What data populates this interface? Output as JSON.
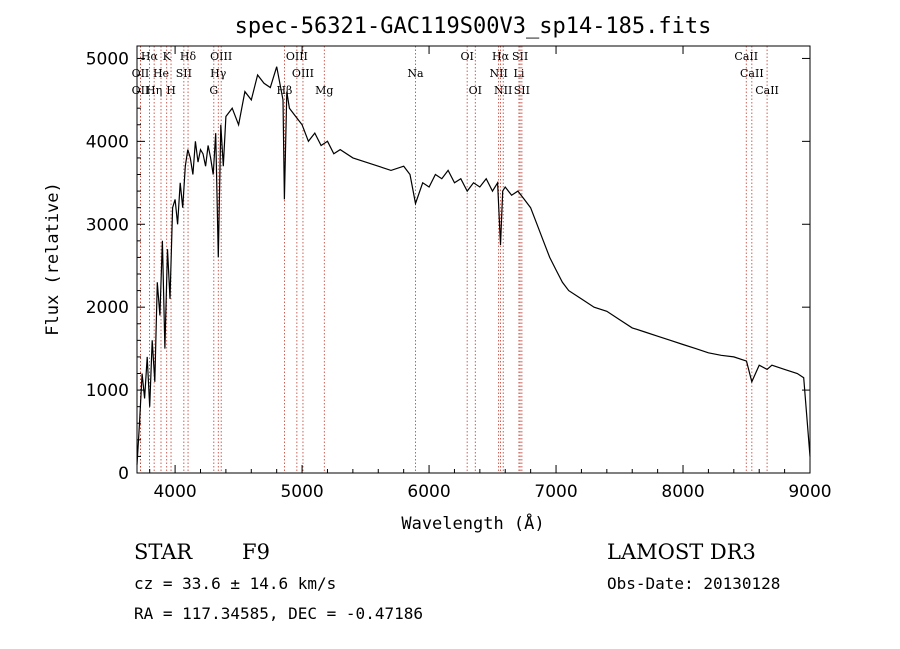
{
  "chart_data": {
    "type": "line",
    "title": "spec-56321-GAC119S00V3_sp14-185.fits",
    "xlabel": "Wavelength (Å)",
    "ylabel": "Flux (relative)",
    "xlim": [
      3700,
      9000
    ],
    "ylim": [
      0,
      5150
    ],
    "xticks": [
      4000,
      5000,
      6000,
      7000,
      8000,
      9000
    ],
    "yticks": [
      0,
      1000,
      2000,
      3000,
      4000,
      5000
    ],
    "series": [
      {
        "name": "flux",
        "x": [
          3700,
          3720,
          3740,
          3760,
          3780,
          3800,
          3820,
          3840,
          3860,
          3880,
          3900,
          3920,
          3940,
          3960,
          3980,
          4000,
          4020,
          4040,
          4060,
          4080,
          4100,
          4120,
          4140,
          4160,
          4180,
          4200,
          4220,
          4240,
          4260,
          4280,
          4300,
          4320,
          4340,
          4360,
          4380,
          4400,
          4450,
          4500,
          4550,
          4600,
          4650,
          4700,
          4750,
          4800,
          4850,
          4861,
          4880,
          4900,
          4950,
          5000,
          5050,
          5100,
          5150,
          5200,
          5250,
          5300,
          5400,
          5500,
          5600,
          5700,
          5800,
          5850,
          5893,
          5950,
          6000,
          6050,
          6100,
          6150,
          6200,
          6250,
          6300,
          6350,
          6400,
          6450,
          6500,
          6540,
          6563,
          6580,
          6600,
          6650,
          6700,
          6750,
          6800,
          6850,
          6900,
          6950,
          7000,
          7050,
          7100,
          7200,
          7300,
          7400,
          7500,
          7600,
          7700,
          7800,
          7900,
          8000,
          8100,
          8200,
          8300,
          8400,
          8500,
          8542,
          8600,
          8662,
          8700,
          8800,
          8900,
          8950,
          9000
        ],
        "y": [
          100,
          600,
          1200,
          900,
          1400,
          800,
          1600,
          1100,
          2300,
          1900,
          2800,
          1500,
          2700,
          2100,
          3200,
          3300,
          3000,
          3500,
          3200,
          3700,
          3900,
          3800,
          3600,
          4000,
          3750,
          3900,
          3850,
          3700,
          3950,
          3800,
          3600,
          4100,
          2600,
          4200,
          3700,
          4300,
          4400,
          4200,
          4600,
          4500,
          4800,
          4700,
          4650,
          4900,
          4500,
          3300,
          4600,
          4400,
          4300,
          4200,
          4000,
          4100,
          3950,
          4000,
          3850,
          3900,
          3800,
          3750,
          3700,
          3650,
          3700,
          3600,
          3250,
          3500,
          3450,
          3600,
          3550,
          3650,
          3500,
          3550,
          3400,
          3500,
          3450,
          3550,
          3400,
          3500,
          2750,
          3400,
          3450,
          3350,
          3400,
          3300,
          3200,
          3000,
          2800,
          2600,
          2450,
          2300,
          2200,
          2100,
          2000,
          1950,
          1850,
          1750,
          1700,
          1650,
          1600,
          1550,
          1500,
          1450,
          1420,
          1400,
          1350,
          1100,
          1300,
          1250,
          1300,
          1250,
          1200,
          1150,
          200
        ]
      }
    ],
    "line_groups": [
      {
        "row": 0,
        "items": [
          {
            "label": "Hα",
            "x": 3798
          },
          {
            "label": "K",
            "x": 3934
          },
          {
            "label": "Hδ",
            "x": 4102
          },
          {
            "label": "OIII",
            "x": 4363
          },
          {
            "label": "OIII",
            "x": 4959
          },
          {
            "label": "OI",
            "x": 6300
          },
          {
            "label": "Hα",
            "x": 6563
          },
          {
            "label": "SII",
            "x": 6717
          },
          {
            "label": "CaII",
            "x": 8498
          }
        ]
      },
      {
        "row": 1,
        "items": [
          {
            "label": "OII",
            "x": 3727
          },
          {
            "label": "He",
            "x": 3889
          },
          {
            "label": "SII",
            "x": 4069
          },
          {
            "label": "Hγ",
            "x": 4340
          },
          {
            "label": "OIII",
            "x": 5007
          },
          {
            "label": "Na",
            "x": 5893
          },
          {
            "label": "NII",
            "x": 6548
          },
          {
            "label": "Li",
            "x": 6708
          },
          {
            "label": "CaII",
            "x": 8542
          }
        ]
      },
      {
        "row": 2,
        "items": [
          {
            "label": "OII",
            "x": 3727
          },
          {
            "label": "Hη",
            "x": 3835
          },
          {
            "label": "H",
            "x": 3968
          },
          {
            "label": "G",
            "x": 4305
          },
          {
            "label": "Hβ",
            "x": 4861
          },
          {
            "label": "Mg",
            "x": 5175
          },
          {
            "label": "OI",
            "x": 6364
          },
          {
            "label": "NII",
            "x": 6584
          },
          {
            "label": "SII",
            "x": 6731
          },
          {
            "label": "CaII",
            "x": 8662
          }
        ]
      }
    ]
  },
  "info": {
    "class": "STAR",
    "subclass": "F9",
    "survey": "LAMOST DR3",
    "cz": "cz = 33.6 ± 14.6 km/s",
    "obs_date": "Obs-Date: 20130128",
    "coords": "RA = 117.34585, DEC =  -0.47186"
  }
}
